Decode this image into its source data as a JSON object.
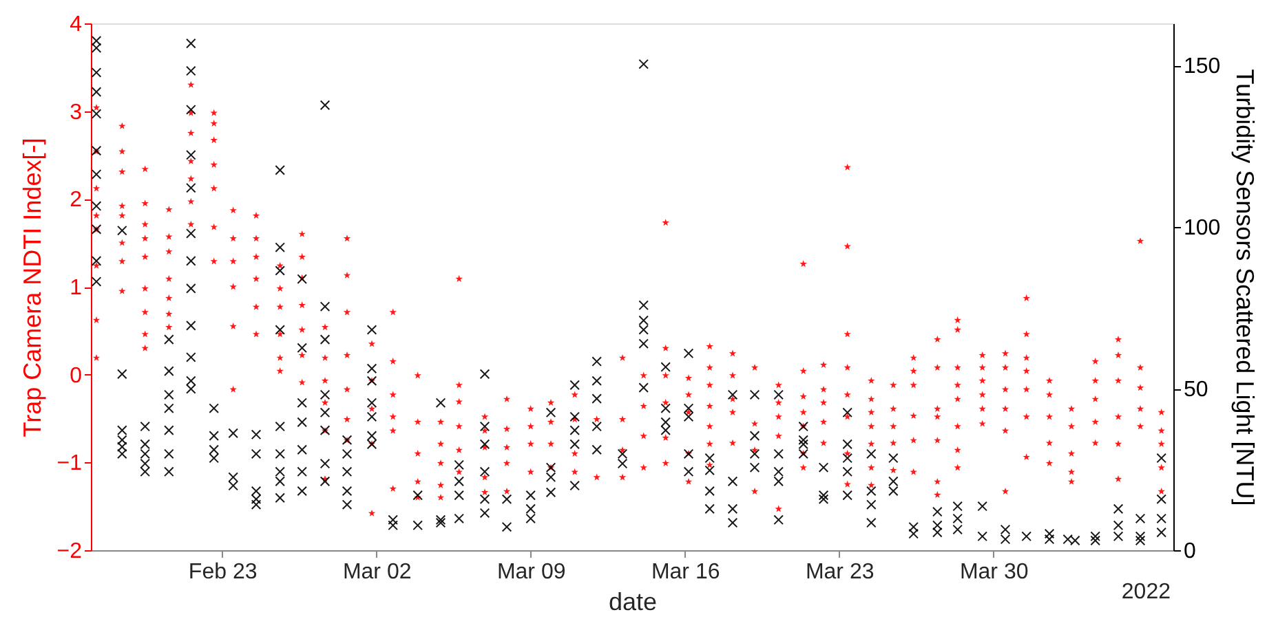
{
  "chart_data": {
    "type": "scatter",
    "xlabel": "date",
    "ylabel": "Trap Camera NDTI Index[-]",
    "y2label": "Turbidity Sensors Scattered Light [NTU]",
    "xlim": [
      "2022-02-17T01:00",
      "2022-04-07T04:00"
    ],
    "xticks": [
      {
        "value": "2022-02-23",
        "label": "Feb 23"
      },
      {
        "value": "2022-03-02",
        "label": "Mar 02"
      },
      {
        "value": "2022-03-09",
        "label": "Mar 09"
      },
      {
        "value": "2022-03-16",
        "label": "Mar 16"
      },
      {
        "value": "2022-03-23",
        "label": "Mar 23"
      },
      {
        "value": "2022-03-30",
        "label": "Mar 30"
      }
    ],
    "ylim": [
      -2,
      4
    ],
    "yticks": [
      -2,
      -1,
      0,
      1,
      2,
      3,
      4
    ],
    "y2lim": [
      0,
      163
    ],
    "y2ticks": [
      0,
      50,
      100,
      150
    ],
    "annotations": [
      "2022"
    ],
    "series": [
      {
        "color": "#ff0000",
        "marker": "star",
        "axis": "y",
        "x": [
          "2022-02-17T07:00",
          "2022-02-17T07:00",
          "2022-02-17T07:00",
          "2022-02-17T07:00",
          "2022-02-17T07:00",
          "2022-02-17T07:00",
          "2022-02-17T07:00",
          "2022-02-17T07:00",
          "2022-02-18T11:00",
          "2022-02-18T11:00",
          "2022-02-18T11:00",
          "2022-02-18T11:00",
          "2022-02-18T11:00",
          "2022-02-18T11:00",
          "2022-02-18T11:00",
          "2022-02-18T11:00",
          "2022-02-19T12:00",
          "2022-02-19T12:00",
          "2022-02-19T12:00",
          "2022-02-19T12:00",
          "2022-02-19T12:00",
          "2022-02-19T12:00",
          "2022-02-19T12:00",
          "2022-02-19T12:00",
          "2022-02-19T12:00",
          "2022-02-20T14:00",
          "2022-02-20T14:00",
          "2022-02-20T14:00",
          "2022-02-20T14:00",
          "2022-02-20T14:00",
          "2022-02-20T14:00",
          "2022-02-20T14:00",
          "2022-02-21T14:00",
          "2022-02-21T14:00",
          "2022-02-21T14:00",
          "2022-02-21T14:00",
          "2022-02-21T14:00",
          "2022-02-21T14:00",
          "2022-02-21T14:00",
          "2022-02-22T15:00",
          "2022-02-22T15:00",
          "2022-02-22T15:00",
          "2022-02-22T15:00",
          "2022-02-22T15:00",
          "2022-02-22T15:00",
          "2022-02-22T15:00",
          "2022-02-23T12:00",
          "2022-02-23T12:00",
          "2022-02-23T12:00",
          "2022-02-23T12:00",
          "2022-02-23T12:00",
          "2022-02-23T12:00",
          "2022-02-24T13:00",
          "2022-02-24T13:00",
          "2022-02-24T13:00",
          "2022-02-24T13:00",
          "2022-02-24T13:00",
          "2022-02-24T13:00",
          "2022-02-25T15:00",
          "2022-02-25T15:00",
          "2022-02-25T15:00",
          "2022-02-25T15:00",
          "2022-02-25T15:00",
          "2022-02-25T15:00",
          "2022-02-26T15:00",
          "2022-02-26T15:00",
          "2022-02-26T15:00",
          "2022-02-26T15:00",
          "2022-02-26T15:00",
          "2022-02-26T15:00",
          "2022-02-26T15:00",
          "2022-02-27T16:00",
          "2022-02-27T16:00",
          "2022-02-27T16:00",
          "2022-02-27T16:00",
          "2022-02-27T16:00",
          "2022-02-27T16:00",
          "2022-02-28T16:00",
          "2022-02-28T16:00",
          "2022-02-28T16:00",
          "2022-02-28T16:00",
          "2022-02-28T16:00",
          "2022-02-28T16:00",
          "2022-02-28T16:00",
          "2022-03-01T19:00",
          "2022-03-01T19:00",
          "2022-03-01T19:00",
          "2022-03-01T19:00",
          "2022-03-01T19:00",
          "2022-03-02T18:00",
          "2022-03-02T18:00",
          "2022-03-02T18:00",
          "2022-03-02T18:00",
          "2022-03-02T18:00",
          "2022-03-02T18:00",
          "2022-03-03T21:00",
          "2022-03-03T21:00",
          "2022-03-03T21:00",
          "2022-03-03T21:00",
          "2022-03-03T21:00",
          "2022-03-04T22:00",
          "2022-03-04T22:00",
          "2022-03-04T22:00",
          "2022-03-04T22:00",
          "2022-03-04T22:00",
          "2022-03-05T18:00",
          "2022-03-05T18:00",
          "2022-03-05T18:00",
          "2022-03-05T18:00",
          "2022-03-05T18:00",
          "2022-03-05T18:00",
          "2022-03-06T22:00",
          "2022-03-06T22:00",
          "2022-03-06T22:00",
          "2022-03-06T22:00",
          "2022-03-06T22:00",
          "2022-03-07T22:00",
          "2022-03-07T22:00",
          "2022-03-07T22:00",
          "2022-03-07T22:00",
          "2022-03-07T22:00",
          "2022-03-09T00:00",
          "2022-03-09T00:00",
          "2022-03-09T00:00",
          "2022-03-09T00:00",
          "2022-03-09T22:00",
          "2022-03-09T22:00",
          "2022-03-09T22:00",
          "2022-03-09T22:00",
          "2022-03-11T00:00",
          "2022-03-11T00:00",
          "2022-03-11T00:00",
          "2022-03-11T00:00",
          "2022-03-12T00:00",
          "2022-03-12T00:00",
          "2022-03-13T04:00",
          "2022-03-13T04:00",
          "2022-03-13T04:00",
          "2022-03-13T04:00",
          "2022-03-14T03:00",
          "2022-03-14T03:00",
          "2022-03-14T03:00",
          "2022-03-14T03:00",
          "2022-03-15T03:00",
          "2022-03-15T03:00",
          "2022-03-15T03:00",
          "2022-03-15T03:00",
          "2022-03-15T03:00",
          "2022-03-15T03:00",
          "2022-03-16T04:00",
          "2022-03-16T04:00",
          "2022-03-16T04:00",
          "2022-03-16T04:00",
          "2022-03-16T04:00",
          "2022-03-17T03:00",
          "2022-03-17T03:00",
          "2022-03-17T03:00",
          "2022-03-17T03:00",
          "2022-03-17T03:00",
          "2022-03-17T03:00",
          "2022-03-17T03:00",
          "2022-03-18T04:00",
          "2022-03-18T04:00",
          "2022-03-18T04:00",
          "2022-03-18T04:00",
          "2022-03-18T04:00",
          "2022-03-19T04:00",
          "2022-03-19T04:00",
          "2022-03-19T04:00",
          "2022-03-19T04:00",
          "2022-03-20T06:00",
          "2022-03-20T06:00",
          "2022-03-20T06:00",
          "2022-03-20T06:00",
          "2022-03-20T06:00",
          "2022-03-21T09:00",
          "2022-03-21T09:00",
          "2022-03-21T09:00",
          "2022-03-21T09:00",
          "2022-03-21T09:00",
          "2022-03-21T09:00",
          "2022-03-21T09:00",
          "2022-03-22T07:00",
          "2022-03-22T07:00",
          "2022-03-22T07:00",
          "2022-03-22T07:00",
          "2022-03-22T07:00",
          "2022-03-23T09:00",
          "2022-03-23T09:00",
          "2022-03-23T09:00",
          "2022-03-23T09:00",
          "2022-03-23T09:00",
          "2022-03-23T09:00",
          "2022-03-23T09:00",
          "2022-03-23T09:00",
          "2022-03-24T11:00",
          "2022-03-24T11:00",
          "2022-03-24T11:00",
          "2022-03-24T11:00",
          "2022-03-24T11:00",
          "2022-03-24T11:00",
          "2022-03-24T11:00",
          "2022-03-25T11:00",
          "2022-03-25T11:00",
          "2022-03-25T11:00",
          "2022-03-25T11:00",
          "2022-03-25T11:00",
          "2022-03-26T09:00",
          "2022-03-26T09:00",
          "2022-03-26T09:00",
          "2022-03-26T09:00",
          "2022-03-26T09:00",
          "2022-03-26T09:00",
          "2022-03-27T11:00",
          "2022-03-27T11:00",
          "2022-03-27T11:00",
          "2022-03-27T11:00",
          "2022-03-27T11:00",
          "2022-03-27T11:00",
          "2022-03-27T11:00",
          "2022-03-28T09:00",
          "2022-03-28T09:00",
          "2022-03-28T09:00",
          "2022-03-28T09:00",
          "2022-03-28T09:00",
          "2022-03-28T09:00",
          "2022-03-28T09:00",
          "2022-03-28T09:00",
          "2022-03-29T12:00",
          "2022-03-29T12:00",
          "2022-03-29T12:00",
          "2022-03-29T12:00",
          "2022-03-29T12:00",
          "2022-03-29T12:00",
          "2022-03-30T13:00",
          "2022-03-30T13:00",
          "2022-03-30T13:00",
          "2022-03-30T13:00",
          "2022-03-30T13:00",
          "2022-03-30T13:00",
          "2022-03-31T12:00",
          "2022-03-31T12:00",
          "2022-03-31T12:00",
          "2022-03-31T12:00",
          "2022-03-31T12:00",
          "2022-03-31T12:00",
          "2022-03-31T12:00",
          "2022-04-01T13:00",
          "2022-04-01T13:00",
          "2022-04-01T13:00",
          "2022-04-01T13:00",
          "2022-04-01T13:00",
          "2022-04-02T13:00",
          "2022-04-02T13:00",
          "2022-04-02T13:00",
          "2022-04-02T13:00",
          "2022-04-02T13:00",
          "2022-04-03T15:00",
          "2022-04-03T15:00",
          "2022-04-03T15:00",
          "2022-04-03T15:00",
          "2022-04-03T15:00",
          "2022-04-04T16:00",
          "2022-04-04T16:00",
          "2022-04-04T16:00",
          "2022-04-04T16:00",
          "2022-04-04T16:00",
          "2022-04-04T16:00",
          "2022-04-05T16:00",
          "2022-04-05T16:00",
          "2022-04-05T16:00",
          "2022-04-05T16:00",
          "2022-04-05T16:00",
          "2022-04-06T15:00",
          "2022-04-06T15:00",
          "2022-04-06T15:00",
          "2022-04-06T15:00",
          "2022-04-06T15:00"
        ],
        "values": [
          3.04,
          2.54,
          2.12,
          1.81,
          1.65,
          1.24,
          0.62,
          0.19,
          2.83,
          2.54,
          2.31,
          1.92,
          1.81,
          1.5,
          1.29,
          0.95,
          2.34,
          1.95,
          1.71,
          1.55,
          1.34,
          0.98,
          0.71,
          0.46,
          0.3,
          1.88,
          1.57,
          1.4,
          1.09,
          0.87,
          0.69,
          0.54,
          3.3,
          2.98,
          2.75,
          2.43,
          2.23,
          1.97,
          1.71,
          2.98,
          2.86,
          2.67,
          2.39,
          2.12,
          1.68,
          1.29,
          1.87,
          1.55,
          1.29,
          1.0,
          0.55,
          -0.17,
          1.81,
          1.55,
          1.34,
          1.09,
          0.77,
          0.46,
          1.24,
          0.98,
          0.77,
          0.46,
          0.19,
          0.04,
          1.6,
          1.34,
          1.1,
          0.79,
          0.51,
          0.22,
          -0.09,
          0.54,
          0.19,
          -0.07,
          -0.32,
          -0.64,
          -1.19,
          1.55,
          1.13,
          0.71,
          0.22,
          -0.17,
          -0.51,
          -0.75,
          0.35,
          -0.07,
          -0.39,
          -0.79,
          -1.58,
          0.71,
          0.15,
          -0.23,
          -0.48,
          -0.64,
          -1.3,
          -0.01,
          -0.54,
          -0.9,
          -1.22,
          -1.4,
          -0.54,
          -0.79,
          -1.01,
          -1.26,
          -1.4,
          1.09,
          -0.12,
          -0.31,
          -0.59,
          -0.86,
          -1.11,
          -0.48,
          -0.64,
          -0.83,
          -1.17,
          -1.34,
          -0.28,
          -0.62,
          -0.83,
          -1.01,
          -1.33,
          -0.39,
          -0.59,
          -0.79,
          -1.11,
          -0.32,
          -0.54,
          -0.79,
          -1.06,
          -0.23,
          -0.51,
          -0.9,
          -1.11,
          -0.51,
          -1.17,
          0.19,
          -0.51,
          -0.86,
          -1.17,
          -0.01,
          -0.36,
          -0.7,
          -1.06,
          1.73,
          0.3,
          -0.01,
          -0.32,
          -0.72,
          -1.01,
          -0.04,
          -0.23,
          -0.43,
          -0.9,
          -1.22,
          0.32,
          0.08,
          -0.12,
          -0.36,
          -0.59,
          -0.79,
          -1.03,
          0.24,
          -0.01,
          -0.28,
          -0.43,
          -0.78,
          0.08,
          -0.56,
          -0.86,
          -1.33,
          -0.12,
          -0.32,
          -0.48,
          -0.7,
          -1.53,
          1.26,
          0.04,
          -0.25,
          -0.43,
          -0.59,
          -0.9,
          -1.06,
          0.11,
          -0.17,
          -0.32,
          -0.54,
          -0.78,
          2.36,
          1.46,
          0.46,
          0.08,
          -0.23,
          -0.48,
          -0.9,
          -1.25,
          -0.07,
          -0.28,
          -0.43,
          -0.59,
          -0.79,
          -1.06,
          -1.26,
          -0.12,
          -0.39,
          -0.59,
          -0.78,
          -1.09,
          0.19,
          0.04,
          -0.12,
          -0.47,
          -0.75,
          -1.11,
          0.4,
          0.08,
          -0.39,
          -0.48,
          -0.75,
          -1.22,
          -1.37,
          0.62,
          0.51,
          0.08,
          -0.12,
          -0.28,
          -0.59,
          -0.86,
          -1.06,
          0.22,
          0.08,
          -0.07,
          -0.23,
          -0.39,
          -0.56,
          0.24,
          0.08,
          -0.17,
          -0.39,
          -0.64,
          -1.33,
          0.87,
          0.46,
          0.19,
          0.04,
          -0.17,
          -0.48,
          -0.94,
          -0.07,
          -0.23,
          -0.48,
          -0.78,
          -1.01,
          -0.39,
          -0.59,
          -0.9,
          -1.11,
          -1.22,
          0.15,
          -0.07,
          -0.28,
          -0.54,
          -0.78,
          0.4,
          0.22,
          -0.07,
          -0.48,
          -0.79,
          -1.19,
          1.52,
          0.08,
          -0.15,
          -0.39,
          -0.59,
          -0.43,
          -0.64,
          -0.79,
          -1.06,
          -1.33
        ]
      },
      {
        "color": "#000000",
        "marker": "cross",
        "axis": "y2",
        "x": [
          "2022-02-17T07:00",
          "2022-02-17T07:00",
          "2022-02-17T07:00",
          "2022-02-17T07:00",
          "2022-02-17T07:00",
          "2022-02-17T07:00",
          "2022-02-17T07:00",
          "2022-02-17T07:00",
          "2022-02-17T07:00",
          "2022-02-17T07:00",
          "2022-02-17T07:00",
          "2022-02-18T11:00",
          "2022-02-18T11:00",
          "2022-02-18T11:00",
          "2022-02-18T11:00",
          "2022-02-18T11:00",
          "2022-02-18T11:00",
          "2022-02-19T12:00",
          "2022-02-19T12:00",
          "2022-02-19T12:00",
          "2022-02-19T12:00",
          "2022-02-19T12:00",
          "2022-02-20T14:00",
          "2022-02-20T14:00",
          "2022-02-20T14:00",
          "2022-02-20T14:00",
          "2022-02-20T14:00",
          "2022-02-20T14:00",
          "2022-02-20T14:00",
          "2022-02-21T14:00",
          "2022-02-21T14:00",
          "2022-02-21T14:00",
          "2022-02-21T14:00",
          "2022-02-21T14:00",
          "2022-02-21T14:00",
          "2022-02-21T14:00",
          "2022-02-21T14:00",
          "2022-02-21T14:00",
          "2022-02-21T14:00",
          "2022-02-21T14:00",
          "2022-02-21T14:00",
          "2022-02-22T15:00",
          "2022-02-22T15:00",
          "2022-02-22T15:00",
          "2022-02-22T15:00",
          "2022-02-23T12:00",
          "2022-02-23T12:00",
          "2022-02-23T12:00",
          "2022-02-24T13:00",
          "2022-02-24T13:00",
          "2022-02-24T13:00",
          "2022-02-24T13:00",
          "2022-02-24T13:00",
          "2022-02-25T15:00",
          "2022-02-25T15:00",
          "2022-02-25T15:00",
          "2022-02-25T15:00",
          "2022-02-25T15:00",
          "2022-02-25T15:00",
          "2022-02-25T15:00",
          "2022-02-25T15:00",
          "2022-02-25T15:00",
          "2022-02-26T15:00",
          "2022-02-26T15:00",
          "2022-02-26T15:00",
          "2022-02-26T15:00",
          "2022-02-26T15:00",
          "2022-02-26T15:00",
          "2022-02-26T15:00",
          "2022-02-27T16:00",
          "2022-02-27T16:00",
          "2022-02-27T16:00",
          "2022-02-27T16:00",
          "2022-02-27T16:00",
          "2022-02-27T16:00",
          "2022-02-27T16:00",
          "2022-02-27T16:00",
          "2022-02-28T16:00",
          "2022-02-28T16:00",
          "2022-02-28T16:00",
          "2022-02-28T16:00",
          "2022-02-28T16:00",
          "2022-03-01T19:00",
          "2022-03-01T19:00",
          "2022-03-01T19:00",
          "2022-03-01T19:00",
          "2022-03-01T19:00",
          "2022-03-01T19:00",
          "2022-03-01T19:00",
          "2022-03-02T18:00",
          "2022-03-02T18:00",
          "2022-03-03T21:00",
          "2022-03-03T21:00",
          "2022-03-04T22:00",
          "2022-03-04T22:00",
          "2022-03-04T22:00",
          "2022-03-05T18:00",
          "2022-03-05T18:00",
          "2022-03-05T18:00",
          "2022-03-05T18:00",
          "2022-03-06T22:00",
          "2022-03-06T22:00",
          "2022-03-06T22:00",
          "2022-03-06T22:00",
          "2022-03-06T22:00",
          "2022-03-06T22:00",
          "2022-03-07T22:00",
          "2022-03-07T22:00",
          "2022-03-09T00:00",
          "2022-03-09T00:00",
          "2022-03-09T00:00",
          "2022-03-09T22:00",
          "2022-03-09T22:00",
          "2022-03-09T22:00",
          "2022-03-09T22:00",
          "2022-03-11T00:00",
          "2022-03-11T00:00",
          "2022-03-11T00:00",
          "2022-03-11T00:00",
          "2022-03-11T00:00",
          "2022-03-12T00:00",
          "2022-03-12T00:00",
          "2022-03-12T00:00",
          "2022-03-12T00:00",
          "2022-03-12T00:00",
          "2022-03-13T04:00",
          "2022-03-13T04:00",
          "2022-03-14T03:00",
          "2022-03-14T03:00",
          "2022-03-14T03:00",
          "2022-03-14T03:00",
          "2022-03-14T03:00",
          "2022-03-14T03:00",
          "2022-03-15T03:00",
          "2022-03-15T03:00",
          "2022-03-15T03:00",
          "2022-03-15T03:00",
          "2022-03-16T04:00",
          "2022-03-16T04:00",
          "2022-03-16T04:00",
          "2022-03-16T04:00",
          "2022-03-16T04:00",
          "2022-03-17T03:00",
          "2022-03-17T03:00",
          "2022-03-17T03:00",
          "2022-03-17T03:00",
          "2022-03-18T04:00",
          "2022-03-18T04:00",
          "2022-03-18T04:00",
          "2022-03-18T04:00",
          "2022-03-19T04:00",
          "2022-03-19T04:00",
          "2022-03-19T04:00",
          "2022-03-19T04:00",
          "2022-03-20T06:00",
          "2022-03-20T06:00",
          "2022-03-20T06:00",
          "2022-03-20T06:00",
          "2022-03-20T06:00",
          "2022-03-21T09:00",
          "2022-03-21T09:00",
          "2022-03-21T09:00",
          "2022-03-21T09:00",
          "2022-03-22T07:00",
          "2022-03-22T07:00",
          "2022-03-22T07:00",
          "2022-03-23T09:00",
          "2022-03-23T09:00",
          "2022-03-23T09:00",
          "2022-03-23T09:00",
          "2022-03-23T09:00",
          "2022-03-24T11:00",
          "2022-03-24T11:00",
          "2022-03-24T11:00",
          "2022-03-24T11:00",
          "2022-03-25T11:00",
          "2022-03-25T11:00",
          "2022-03-25T11:00",
          "2022-03-26T09:00",
          "2022-03-26T09:00",
          "2022-03-27T11:00",
          "2022-03-27T11:00",
          "2022-03-27T11:00",
          "2022-03-28T09:00",
          "2022-03-28T09:00",
          "2022-03-28T09:00",
          "2022-03-29T12:00",
          "2022-03-29T12:00",
          "2022-03-30T13:00",
          "2022-03-30T13:00",
          "2022-03-31T12:00",
          "2022-04-01T13:00",
          "2022-04-01T13:00",
          "2022-04-02T09:00",
          "2022-04-02T17:00",
          "2022-04-03T15:00",
          "2022-04-03T15:00",
          "2022-04-04T16:00",
          "2022-04-04T16:00",
          "2022-04-04T16:00",
          "2022-04-05T16:00",
          "2022-04-05T16:00",
          "2022-04-05T16:00",
          "2022-04-06T15:00",
          "2022-04-06T15:00",
          "2022-04-06T15:00",
          "2022-04-06T15:00"
        ],
        "values": [
          157.6,
          155.4,
          147.8,
          141.8,
          135,
          123.6,
          116.3,
          106.5,
          99.3,
          89.5,
          83.1,
          98.9,
          54.5,
          37.1,
          34.1,
          32,
          29.8,
          38.3,
          32.8,
          29.8,
          26.8,
          24.3,
          65.2,
          55.4,
          48.1,
          43.9,
          37.1,
          29.8,
          24.3,
          156.8,
          148.3,
          136.3,
          122.3,
          112.1,
          98,
          89.5,
          81,
          69.5,
          59.7,
          52.4,
          49.9,
          43.9,
          35.4,
          31.1,
          28.5,
          36.2,
          22.6,
          20,
          35.8,
          29.8,
          18.3,
          15.8,
          14.1,
          117.6,
          93.7,
          86.5,
          68.2,
          38.3,
          29.8,
          24.3,
          21.3,
          16.2,
          83.9,
          62.6,
          45.6,
          39.6,
          31.1,
          24.3,
          18.3,
          137.7,
          75.4,
          65.2,
          48.1,
          42.6,
          37.1,
          26.8,
          21.3,
          34.1,
          29.8,
          24.3,
          18.3,
          14.1,
          68.2,
          56.2,
          52.4,
          45.6,
          41.3,
          35.4,
          32.8,
          9.4,
          7.7,
          17,
          7.7,
          45.6,
          9.4,
          8.5,
          26.4,
          21.3,
          17,
          9.8,
          54.5,
          38.3,
          32.8,
          24.3,
          15.8,
          11.5,
          15.8,
          7.2,
          17,
          12.8,
          9.8,
          42.6,
          25.6,
          22.6,
          17.9,
          51.1,
          41.3,
          37.1,
          32.8,
          20,
          58.4,
          52.4,
          46.9,
          38.3,
          31.1,
          29.8,
          26.8,
          150.4,
          75.8,
          71.1,
          68.2,
          63.9,
          50.3,
          56.7,
          43.9,
          39.6,
          37.1,
          60.9,
          43.9,
          41.3,
          29.8,
          24.3,
          28.5,
          24.7,
          18.3,
          12.8,
          48.1,
          21.3,
          12.8,
          8.5,
          48.1,
          35.4,
          29.8,
          25.6,
          48.1,
          29.8,
          24.3,
          21.3,
          9.4,
          38.3,
          34.1,
          32.8,
          29.8,
          25.6,
          17,
          15.8,
          42.6,
          32.8,
          28.5,
          24.3,
          17,
          29.8,
          18.3,
          14.1,
          8.5,
          28.5,
          21.3,
          18.3,
          7.2,
          5.1,
          11.9,
          7.7,
          5.5,
          13.6,
          9.8,
          6.4,
          13.6,
          4.3,
          6.4,
          3.4,
          4.3,
          5.1,
          3.4,
          3.4,
          3,
          4.3,
          3,
          12.8,
          7.7,
          4.3,
          9.8,
          4.3,
          3,
          28.5,
          15.8,
          9.8,
          5.5
        ]
      }
    ]
  }
}
